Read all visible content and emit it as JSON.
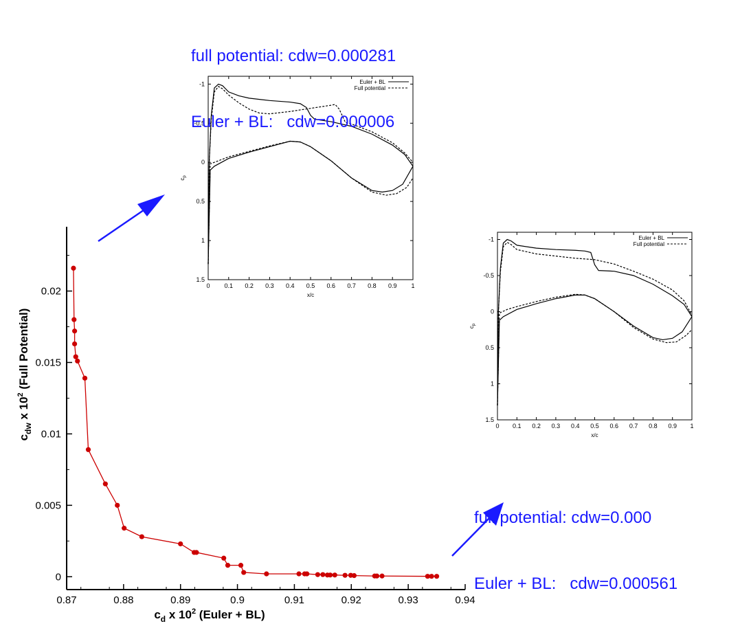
{
  "annotations": {
    "top": {
      "line1": "full potential: cdw=0.000281",
      "line2": "Euler + BL:   cdw=0.000006"
    },
    "right": {
      "line1": "full potential: cdw=0.000",
      "line2": "Euler + BL:   cdw=0.000561"
    },
    "color": "#1a1aff"
  },
  "chart_data": [
    {
      "type": "line",
      "title": "",
      "xlabel_main": "c",
      "xlabel_sub": "d",
      "xlabel_rest": " x 10",
      "xlabel_sup": "2",
      "xlabel_tail": " (Euler + BL)",
      "ylabel_main": "c",
      "ylabel_sub": "dw",
      "ylabel_rest": " x 10",
      "ylabel_sup": "2",
      "ylabel_tail": " (Full Potential)",
      "xlim": [
        0.87,
        0.94
      ],
      "ylim": [
        -0.0009,
        0.0245
      ],
      "xticks": [
        "0.87",
        "0.88",
        "0.89",
        "0.9",
        "0.91",
        "0.92",
        "0.93",
        "0.94"
      ],
      "xtick_values": [
        0.87,
        0.88,
        0.89,
        0.9,
        0.91,
        0.92,
        0.93,
        0.94
      ],
      "yticks": [
        "0",
        "0.005",
        "0.01",
        "0.015",
        "0.02"
      ],
      "ytick_values": [
        0,
        0.005,
        0.01,
        0.015,
        0.02
      ],
      "series_color": "#cc0000",
      "points": [
        [
          0.8712,
          0.0216
        ],
        [
          0.8713,
          0.018
        ],
        [
          0.8714,
          0.0172
        ],
        [
          0.8714,
          0.0163
        ],
        [
          0.8716,
          0.0154
        ],
        [
          0.8719,
          0.0151
        ],
        [
          0.8732,
          0.0139
        ],
        [
          0.8738,
          0.0089
        ],
        [
          0.8768,
          0.0065
        ],
        [
          0.8789,
          0.005
        ],
        [
          0.8801,
          0.0034
        ],
        [
          0.8832,
          0.0028
        ],
        [
          0.89,
          0.0023
        ],
        [
          0.8924,
          0.0017
        ],
        [
          0.8928,
          0.0017
        ],
        [
          0.8976,
          0.0013
        ],
        [
          0.8983,
          0.0008
        ],
        [
          0.9006,
          0.0008
        ],
        [
          0.9011,
          0.0003
        ],
        [
          0.9051,
          0.0002
        ],
        [
          0.9108,
          0.0002
        ],
        [
          0.9118,
          0.0002
        ],
        [
          0.9122,
          0.0002
        ],
        [
          0.9141,
          0.00015
        ],
        [
          0.915,
          0.00015
        ],
        [
          0.9158,
          0.00012
        ],
        [
          0.9163,
          0.00012
        ],
        [
          0.9171,
          0.00012
        ],
        [
          0.9189,
          0.0001
        ],
        [
          0.9199,
          0.0001
        ],
        [
          0.9205,
          8e-05
        ],
        [
          0.9241,
          5e-05
        ],
        [
          0.9245,
          5e-05
        ],
        [
          0.9254,
          5e-05
        ],
        [
          0.9334,
          3e-05
        ],
        [
          0.9341,
          3e-05
        ],
        [
          0.935,
          3e-05
        ]
      ]
    },
    {
      "type": "line",
      "title": "",
      "xlabel": "x/c",
      "ylabel": "cp",
      "xlim": [
        0,
        1
      ],
      "ylim": [
        1.5,
        -1.1
      ],
      "xticks": [
        "0",
        "0.1",
        "0.2",
        "0.3",
        "0.4",
        "0.5",
        "0.6",
        "0.7",
        "0.8",
        "0.9",
        "1"
      ],
      "yticks": [
        "-1",
        "-0.5",
        "0",
        "0.5",
        "1",
        "1.5"
      ],
      "ytick_values": [
        -1,
        -0.5,
        0,
        0.5,
        1,
        1.5
      ],
      "legend_position": "top-right",
      "series": [
        {
          "name": "Euler + BL",
          "dash": "solid",
          "upper": [
            [
              0,
              1.3
            ],
            [
              0.005,
              0.0
            ],
            [
              0.015,
              -0.6
            ],
            [
              0.03,
              -0.95
            ],
            [
              0.05,
              -1.0
            ],
            [
              0.07,
              -0.98
            ],
            [
              0.1,
              -0.9
            ],
            [
              0.15,
              -0.85
            ],
            [
              0.2,
              -0.82
            ],
            [
              0.3,
              -0.79
            ],
            [
              0.4,
              -0.77
            ],
            [
              0.45,
              -0.75
            ],
            [
              0.48,
              -0.7
            ],
            [
              0.5,
              -0.6
            ],
            [
              0.52,
              -0.55
            ],
            [
              0.6,
              -0.52
            ],
            [
              0.7,
              -0.46
            ],
            [
              0.8,
              -0.36
            ],
            [
              0.9,
              -0.22
            ],
            [
              0.96,
              -0.1
            ],
            [
              1.0,
              0.05
            ]
          ],
          "lower": [
            [
              0,
              1.3
            ],
            [
              0.01,
              0.1
            ],
            [
              0.03,
              0.05
            ],
            [
              0.1,
              -0.05
            ],
            [
              0.2,
              -0.13
            ],
            [
              0.3,
              -0.2
            ],
            [
              0.4,
              -0.27
            ],
            [
              0.45,
              -0.26
            ],
            [
              0.5,
              -0.2
            ],
            [
              0.6,
              -0.02
            ],
            [
              0.7,
              0.2
            ],
            [
              0.8,
              0.36
            ],
            [
              0.85,
              0.38
            ],
            [
              0.9,
              0.36
            ],
            [
              0.95,
              0.28
            ],
            [
              1.0,
              0.05
            ]
          ]
        },
        {
          "name": "Full potential",
          "dash": "dashed",
          "upper": [
            [
              0,
              1.3
            ],
            [
              0.005,
              0.0
            ],
            [
              0.015,
              -0.55
            ],
            [
              0.03,
              -0.9
            ],
            [
              0.05,
              -0.97
            ],
            [
              0.07,
              -0.94
            ],
            [
              0.1,
              -0.86
            ],
            [
              0.15,
              -0.76
            ],
            [
              0.2,
              -0.68
            ],
            [
              0.25,
              -0.63
            ],
            [
              0.3,
              -0.62
            ],
            [
              0.4,
              -0.65
            ],
            [
              0.5,
              -0.69
            ],
            [
              0.6,
              -0.73
            ],
            [
              0.62,
              -0.74
            ],
            [
              0.64,
              -0.68
            ],
            [
              0.67,
              -0.51
            ],
            [
              0.7,
              -0.49
            ],
            [
              0.8,
              -0.39
            ],
            [
              0.9,
              -0.25
            ],
            [
              0.96,
              -0.12
            ],
            [
              1.0,
              0.0
            ]
          ],
          "lower": [
            [
              0,
              1.3
            ],
            [
              0.01,
              0.02
            ],
            [
              0.05,
              -0.02
            ],
            [
              0.1,
              -0.07
            ],
            [
              0.2,
              -0.14
            ],
            [
              0.3,
              -0.21
            ],
            [
              0.4,
              -0.27
            ],
            [
              0.45,
              -0.26
            ],
            [
              0.5,
              -0.2
            ],
            [
              0.6,
              -0.02
            ],
            [
              0.7,
              0.2
            ],
            [
              0.8,
              0.38
            ],
            [
              0.87,
              0.42
            ],
            [
              0.92,
              0.4
            ],
            [
              0.97,
              0.32
            ],
            [
              1.0,
              0.2
            ]
          ]
        }
      ]
    },
    {
      "type": "line",
      "title": "",
      "xlabel": "x/c",
      "ylabel": "cp",
      "xlim": [
        0,
        1
      ],
      "ylim": [
        1.5,
        -1.1
      ],
      "xticks": [
        "0",
        "0.1",
        "0.2",
        "0.3",
        "0.4",
        "0.5",
        "0.6",
        "0.7",
        "0.8",
        "0.9",
        "1"
      ],
      "yticks": [
        "-1",
        "-0.5",
        "0",
        "0.5",
        "1",
        "1.5"
      ],
      "ytick_values": [
        -1,
        -0.5,
        0,
        0.5,
        1,
        1.5
      ],
      "legend_position": "top-right",
      "series": [
        {
          "name": "Euler + BL",
          "dash": "solid",
          "upper": [
            [
              0,
              1.3
            ],
            [
              0.005,
              0.0
            ],
            [
              0.015,
              -0.6
            ],
            [
              0.03,
              -0.95
            ],
            [
              0.05,
              -1.0
            ],
            [
              0.07,
              -0.98
            ],
            [
              0.1,
              -0.92
            ],
            [
              0.2,
              -0.88
            ],
            [
              0.3,
              -0.86
            ],
            [
              0.4,
              -0.85
            ],
            [
              0.45,
              -0.84
            ],
            [
              0.48,
              -0.82
            ],
            [
              0.5,
              -0.65
            ],
            [
              0.52,
              -0.57
            ],
            [
              0.6,
              -0.56
            ],
            [
              0.7,
              -0.5
            ],
            [
              0.8,
              -0.38
            ],
            [
              0.9,
              -0.22
            ],
            [
              0.96,
              -0.1
            ],
            [
              1.0,
              0.07
            ]
          ],
          "lower": [
            [
              0,
              1.3
            ],
            [
              0.01,
              0.12
            ],
            [
              0.03,
              0.07
            ],
            [
              0.1,
              -0.03
            ],
            [
              0.2,
              -0.11
            ],
            [
              0.3,
              -0.18
            ],
            [
              0.4,
              -0.23
            ],
            [
              0.45,
              -0.23
            ],
            [
              0.5,
              -0.18
            ],
            [
              0.6,
              0.0
            ],
            [
              0.7,
              0.2
            ],
            [
              0.8,
              0.36
            ],
            [
              0.85,
              0.39
            ],
            [
              0.9,
              0.37
            ],
            [
              0.95,
              0.28
            ],
            [
              1.0,
              0.07
            ]
          ]
        },
        {
          "name": "Full potential",
          "dash": "dashed",
          "upper": [
            [
              0,
              1.3
            ],
            [
              0.005,
              0.0
            ],
            [
              0.015,
              -0.55
            ],
            [
              0.03,
              -0.9
            ],
            [
              0.05,
              -0.96
            ],
            [
              0.07,
              -0.93
            ],
            [
              0.1,
              -0.86
            ],
            [
              0.2,
              -0.8
            ],
            [
              0.3,
              -0.77
            ],
            [
              0.4,
              -0.74
            ],
            [
              0.5,
              -0.72
            ],
            [
              0.6,
              -0.66
            ],
            [
              0.7,
              -0.56
            ],
            [
              0.8,
              -0.45
            ],
            [
              0.9,
              -0.3
            ],
            [
              0.96,
              -0.15
            ],
            [
              1.0,
              0.05
            ]
          ],
          "lower": [
            [
              0,
              1.3
            ],
            [
              0.01,
              0.02
            ],
            [
              0.05,
              -0.03
            ],
            [
              0.1,
              -0.07
            ],
            [
              0.2,
              -0.14
            ],
            [
              0.3,
              -0.2
            ],
            [
              0.4,
              -0.24
            ],
            [
              0.45,
              -0.23
            ],
            [
              0.5,
              -0.18
            ],
            [
              0.6,
              0.0
            ],
            [
              0.7,
              0.22
            ],
            [
              0.8,
              0.38
            ],
            [
              0.87,
              0.43
            ],
            [
              0.92,
              0.42
            ],
            [
              0.97,
              0.33
            ],
            [
              1.0,
              0.25
            ]
          ]
        }
      ]
    }
  ]
}
